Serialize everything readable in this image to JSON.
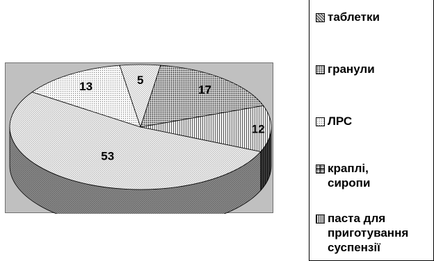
{
  "chart_data": {
    "type": "pie",
    "slices": [
      {
        "value": 5,
        "label": "5",
        "fill": "hatch-fine-diag"
      },
      {
        "value": 17,
        "label": "17",
        "fill": "dots-heavy"
      },
      {
        "value": 12,
        "label": "12",
        "fill": "vertical-lines"
      },
      {
        "value": 53,
        "label": "53",
        "fill": "diag-light"
      },
      {
        "value": 13,
        "label": "13",
        "fill": "dots-light"
      }
    ],
    "legend": [
      {
        "label": "таблетки",
        "swatch": "tablets"
      },
      {
        "label": "гранули",
        "swatch": "granules"
      },
      {
        "label": "ЛРС",
        "swatch": "lrs"
      },
      {
        "label": "краплі,\nсиропи",
        "swatch": "drops"
      },
      {
        "label": "паста для\nприготування\nсуспензії",
        "swatch": "paste"
      }
    ],
    "legend_position": "right",
    "three_d": true
  },
  "colors": {
    "plot_background": "#c0c0c0",
    "side_wall": "#808080",
    "outline": "#000000"
  }
}
